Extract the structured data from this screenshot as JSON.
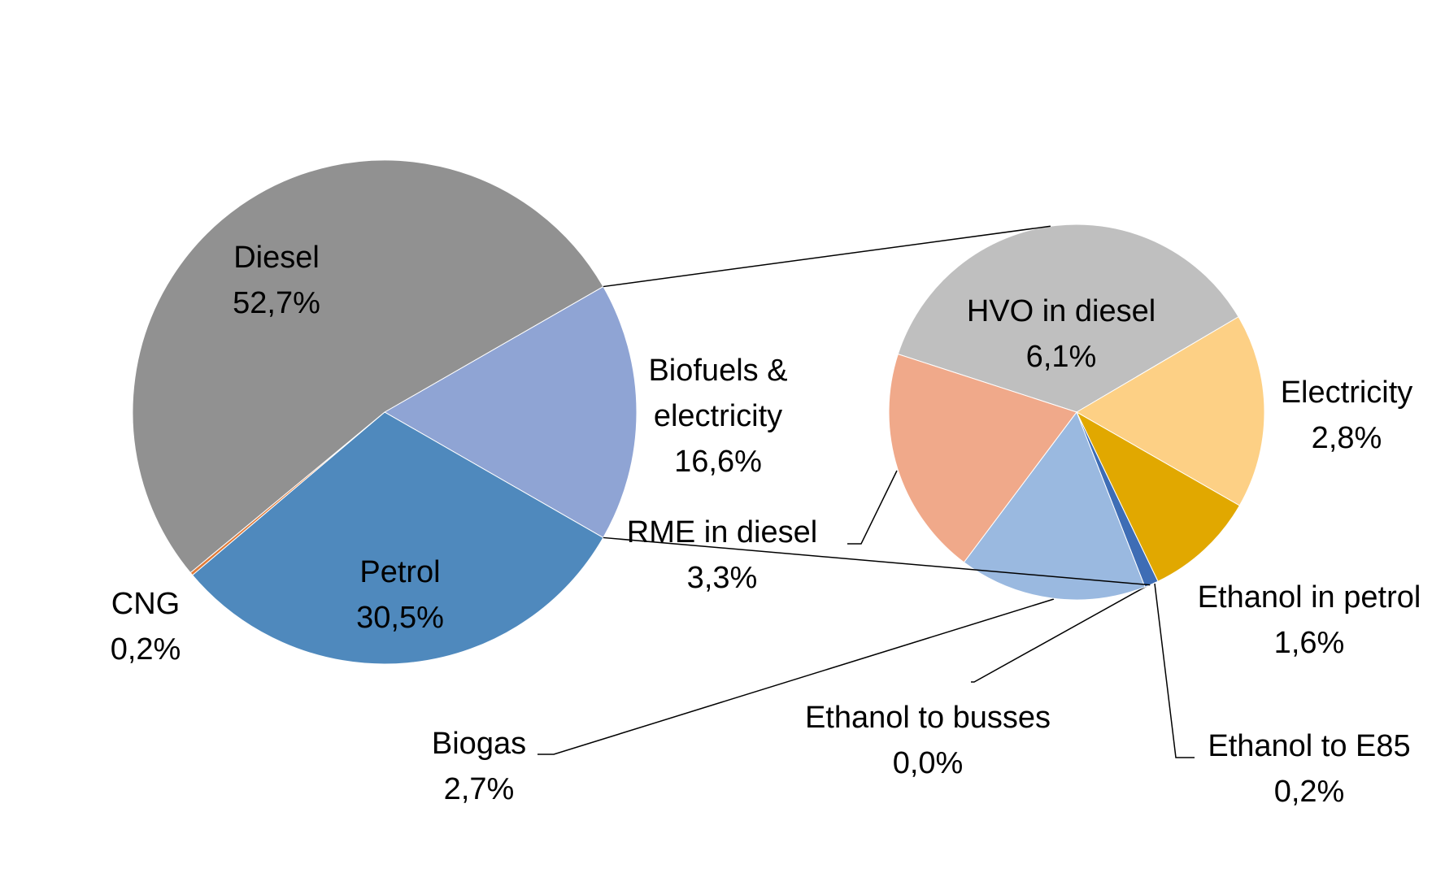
{
  "chart_data": [
    {
      "type": "pie",
      "categories": [
        "Biofuels & electricity",
        "Petrol",
        "CNG",
        "Diesel"
      ],
      "values": [
        16.6,
        30.5,
        0.2,
        52.7
      ],
      "value_labels": [
        "16,6%",
        "30,5%",
        "0,2%",
        "52,7%"
      ],
      "colors": [
        "#8fa4d4",
        "#4f89bd",
        "#e07b39",
        "#919191"
      ]
    },
    {
      "type": "pie",
      "categories": [
        "HVO in diesel",
        "Electricity",
        "Ethanol in petrol",
        "Ethanol to E85",
        "Ethanol to busses",
        "Biogas",
        "RME in diesel"
      ],
      "values": [
        6.1,
        2.8,
        1.6,
        0.2,
        0.0,
        2.7,
        3.3
      ],
      "value_labels": [
        "6,1%",
        "2,8%",
        "1,6%",
        "0,2%",
        "0,0%",
        "2,7%",
        "3,3%"
      ],
      "colors": [
        "#bfbfbf",
        "#fdd085",
        "#e1a800",
        "#3e6db5",
        "#5b9bd5",
        "#9ab9e0",
        "#f0a98a"
      ]
    }
  ]
}
